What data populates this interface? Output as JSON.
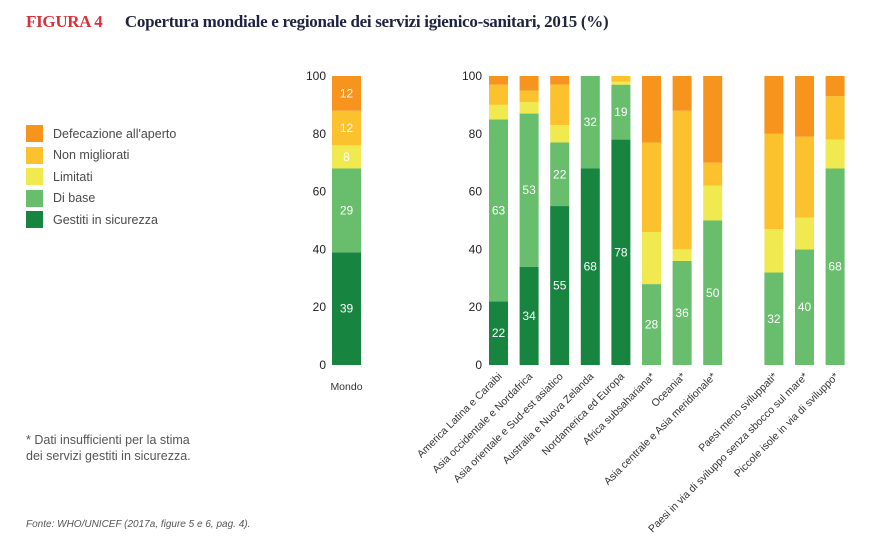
{
  "header": {
    "figure_number": "FIGURA 4",
    "title": "Copertura mondiale e regionale dei servizi igienico-sanitari, 2015 (%)"
  },
  "legend": {
    "items": [
      {
        "label": "Defecazione all'aperto",
        "color": "#f7941d"
      },
      {
        "label": "Non migliorati",
        "color": "#fcc22d"
      },
      {
        "label": "Limitati",
        "color": "#f0e94f"
      },
      {
        "label": "Di base",
        "color": "#69be6d"
      },
      {
        "label": "Gestiti in sicurezza",
        "color": "#17843f"
      }
    ]
  },
  "footnote": {
    "line1": "* Dati insufficienti per la stima",
    "line2": "dei servizi gestiti in sicurezza."
  },
  "source": "Fonte: WHO/UNICEF (2017a, figure 5 e 6, pag. 4).",
  "chart_data": [
    {
      "type": "bar",
      "stacked": true,
      "title": "",
      "xlabel": "",
      "ylabel": "",
      "ylim": [
        0,
        100
      ],
      "yticks": [
        0,
        20,
        40,
        60,
        80,
        100
      ],
      "categories": [
        "Mondo"
      ],
      "series": [
        {
          "name": "Gestiti in sicurezza",
          "color": "#17843f",
          "values": [
            39
          ],
          "labels": [
            "39"
          ]
        },
        {
          "name": "Di base",
          "color": "#69be6d",
          "values": [
            29
          ],
          "labels": [
            "29"
          ]
        },
        {
          "name": "Limitati",
          "color": "#f0e94f",
          "values": [
            8
          ],
          "labels": [
            "8"
          ]
        },
        {
          "name": "Non migliorati",
          "color": "#fcc22d",
          "values": [
            12
          ],
          "labels": [
            "12"
          ]
        },
        {
          "name": "Defecazione all'aperto",
          "color": "#f7941d",
          "values": [
            12
          ],
          "labels": [
            "12"
          ]
        }
      ]
    },
    {
      "type": "bar",
      "stacked": true,
      "title": "",
      "xlabel": "",
      "ylabel": "",
      "ylim": [
        0,
        100
      ],
      "yticks": [
        0,
        20,
        40,
        60,
        80,
        100
      ],
      "categories": [
        "America Latina e Caraibi",
        "Asia occidentale e Nordafrica",
        "Asia orientale e Sud-est asiatico",
        "Australia e Nuova Zelanda",
        "Nordamerica ed Europa",
        "Africa subsahariana*",
        "Oceania*",
        "Asia centrale e Asia meridionale*",
        "",
        "Paesi meno sviluppati*",
        "Paesi in via di sviluppo senza sbocco sul mare*",
        "Piccole isole in via di sviluppo*"
      ],
      "series": [
        {
          "name": "Gestiti in sicurezza",
          "color": "#17843f",
          "values": [
            22,
            34,
            55,
            68,
            78,
            0,
            0,
            0,
            null,
            0,
            0,
            0
          ],
          "labels": [
            "22",
            "34",
            "55",
            "68",
            "78",
            "",
            "",
            "",
            "",
            "",
            "",
            ""
          ]
        },
        {
          "name": "Di base",
          "color": "#69be6d",
          "values": [
            63,
            53,
            22,
            32,
            19,
            28,
            36,
            50,
            null,
            32,
            40,
            68
          ],
          "labels": [
            "63",
            "53",
            "22",
            "32",
            "19",
            "28",
            "36",
            "50",
            "",
            "32",
            "40",
            "68"
          ]
        },
        {
          "name": "Limitati",
          "color": "#f0e94f",
          "values": [
            5,
            4,
            6,
            0,
            1,
            18,
            4,
            12,
            null,
            15,
            11,
            10
          ],
          "labels": [
            "",
            "",
            "",
            "",
            "",
            "",
            "",
            "",
            "",
            "",
            "",
            ""
          ]
        },
        {
          "name": "Non migliorati",
          "color": "#fcc22d",
          "values": [
            7,
            4,
            14,
            0,
            2,
            31,
            48,
            8,
            null,
            33,
            28,
            15
          ],
          "labels": [
            "",
            "",
            "",
            "",
            "",
            "",
            "",
            "",
            "",
            "",
            "",
            ""
          ]
        },
        {
          "name": "Defecazione all'aperto",
          "color": "#f7941d",
          "values": [
            3,
            5,
            3,
            0,
            0,
            23,
            12,
            30,
            null,
            20,
            21,
            7
          ],
          "labels": [
            "",
            "",
            "",
            "",
            "",
            "",
            "",
            "",
            "",
            "",
            "",
            ""
          ]
        }
      ]
    }
  ]
}
